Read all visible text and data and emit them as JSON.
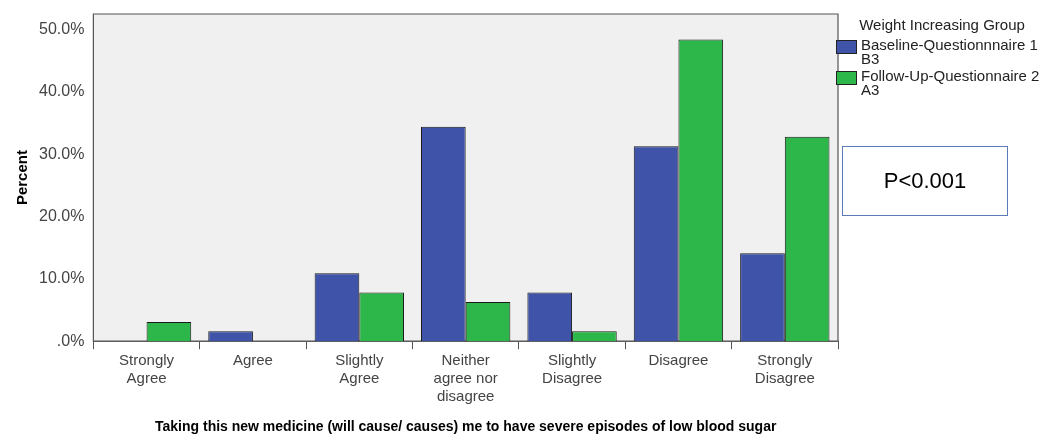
{
  "chart_data": {
    "type": "bar",
    "xlabel": "Taking this new medicine (will cause/ causes) me to have severe episodes of low blood sugar",
    "ylabel": "Percent",
    "legend_title": "Weight Increasing Group",
    "legend": "right",
    "categories": [
      "Strongly Agree",
      "Agree",
      "Slightly Agree",
      "Neither agree nor disagree",
      "Slightly Disagree",
      "Disagree",
      "Strongly Disagree"
    ],
    "series": [
      {
        "name": "Baseline-Questionnnaire 1 B3",
        "color": "#3f54a8",
        "values": [
          0,
          1.6,
          10.9,
          34.4,
          7.8,
          31.3,
          14.1
        ]
      },
      {
        "name": "Follow-Up-Questionnaire 2 A3",
        "color": "#2db64a",
        "values": [
          3.1,
          0,
          7.8,
          6.3,
          1.6,
          48.4,
          32.8
        ]
      }
    ],
    "ylim": [
      0,
      52.5
    ],
    "yticks": [
      {
        "value": 0,
        "label": ".0%"
      },
      {
        "value": 10,
        "label": "10.0%"
      },
      {
        "value": 20,
        "label": "20.0%"
      },
      {
        "value": 30,
        "label": "30.0%"
      },
      {
        "value": 40,
        "label": "40.0%"
      },
      {
        "value": 50,
        "label": "50.0%"
      }
    ],
    "grid": false,
    "annotations": [
      "P<0.001"
    ]
  }
}
